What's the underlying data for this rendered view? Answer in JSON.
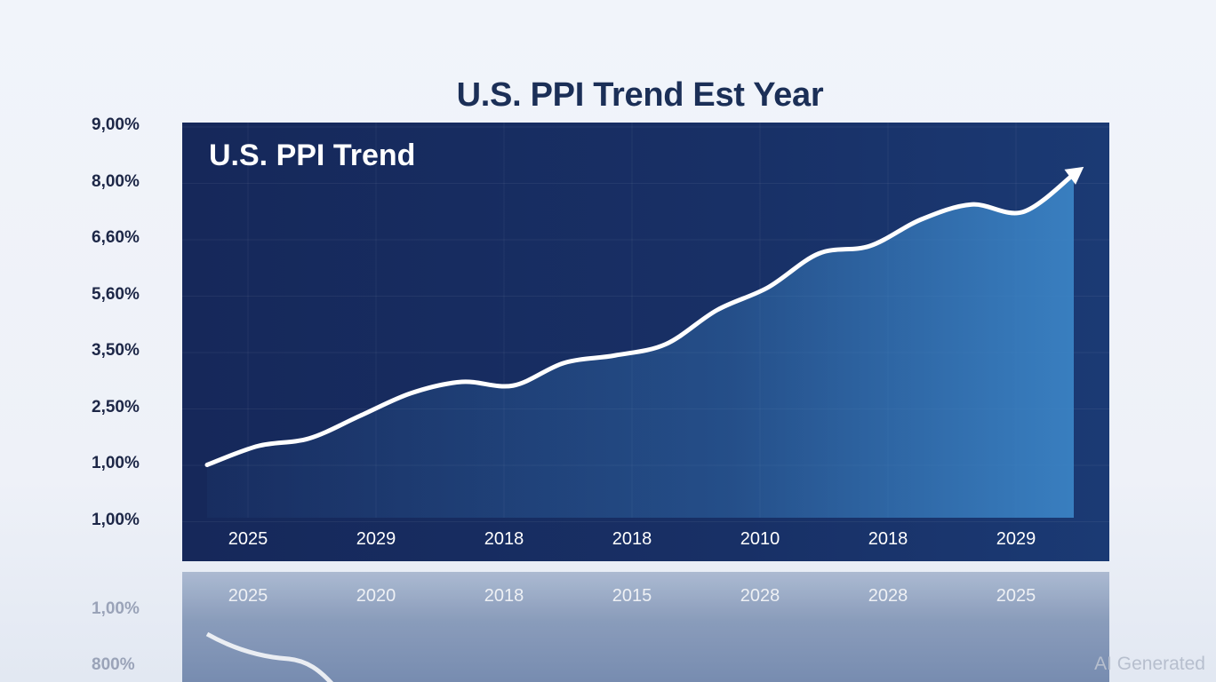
{
  "title": "U.S. PPI Trend Est Year",
  "watermark": "AI Generated",
  "colors": {
    "panel_dark": "#16285a",
    "panel_light": "#1b3a74",
    "line": "#ffffff",
    "area_accent": "#3c86c8",
    "title_text": "#1b2f57"
  },
  "reflection": {
    "x_tick_labels": [
      "2025",
      "2020",
      "2018",
      "2015",
      "2028",
      "2028",
      "2025"
    ],
    "y_tick_labels": [
      "1,00%",
      "800%"
    ]
  },
  "chart_data": {
    "type": "area",
    "title": "U.S. PPI Trend",
    "y_tick_labels": [
      "9,00%",
      "8,00%",
      "6,60%",
      "5,60%",
      "3,50%",
      "2,50%",
      "1,00%",
      "1,00%"
    ],
    "x_tick_labels": [
      "2025",
      "2029",
      "2018",
      "2018",
      "2010",
      "2018",
      "2029"
    ],
    "grid": true,
    "trend_arrow": true,
    "series": [
      {
        "values": [
          1.4,
          1.9,
          2.1,
          2.7,
          3.3,
          3.6,
          3.5,
          4.1,
          4.3,
          4.6,
          5.5,
          6.1,
          7.0,
          7.2,
          7.9,
          8.3,
          8.1,
          9.1
        ]
      }
    ],
    "ylim": [
      0,
      10
    ]
  }
}
